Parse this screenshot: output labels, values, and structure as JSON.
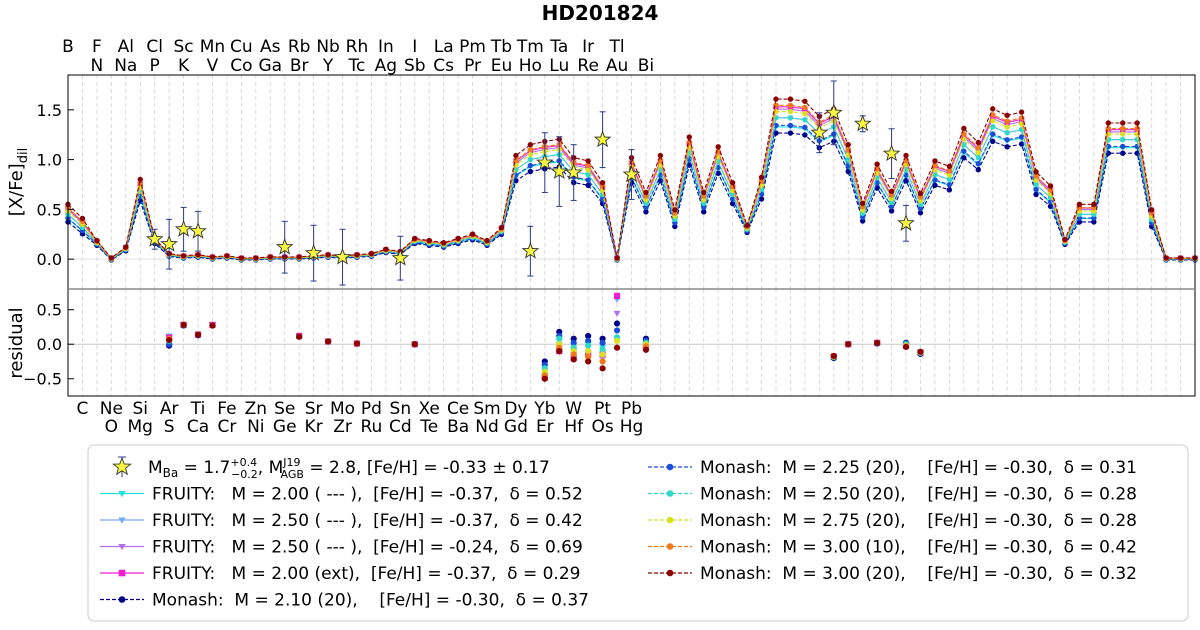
{
  "chart_data": {
    "type": "line",
    "title": "HD201824",
    "top_elements": [
      "B",
      "F",
      "Al",
      "Cl",
      "Sc",
      "Mn",
      "Cu",
      "As",
      "Rb",
      "Nb",
      "Rh",
      "In",
      "I",
      "La",
      "Pm",
      "Tb",
      "Tm",
      "Ta",
      "Ir",
      "Tl"
    ],
    "top_elements_2": [
      "N",
      "Na",
      "P",
      "K",
      "V",
      "Co",
      "Ga",
      "Br",
      "Y",
      "Tc",
      "Ag",
      "Sb",
      "Cs",
      "Pr",
      "Eu",
      "Ho",
      "Lu",
      "Re",
      "Au",
      "Bi"
    ],
    "bottom_elements": [
      "C",
      "Ne",
      "Si",
      "Ar",
      "Ti",
      "Fe",
      "Zn",
      "Se",
      "Sr",
      "Mo",
      "Pd",
      "Sn",
      "Xe",
      "Ce",
      "Sm",
      "Dy",
      "Yb",
      "W",
      "Pt",
      "Pb"
    ],
    "bottom_elements_2": [
      "O",
      "Mg",
      "S",
      "Ca",
      "Cr",
      "Ni",
      "Ge",
      "Kr",
      "Zr",
      "Ru",
      "Cd",
      "Te",
      "Ba",
      "Nd",
      "Gd",
      "Er",
      "Hf",
      "Os",
      "Hg"
    ],
    "x_range": [
      5,
      83
    ],
    "upper_panel": {
      "ylabel_main": "[X/Fe]",
      "ylabel_sub": "dil",
      "ylim": [
        -0.3,
        1.85
      ],
      "yticks": [
        "0.0",
        "0.5",
        "1.0",
        "1.5"
      ],
      "model_z": [
        5,
        6,
        7,
        8,
        9,
        10,
        11,
        12,
        13,
        14,
        15,
        16,
        17,
        18,
        19,
        20,
        21,
        22,
        23,
        24,
        25,
        26,
        27,
        28,
        29,
        30,
        31,
        32,
        33,
        34,
        35,
        36,
        37,
        38,
        39,
        40,
        41,
        42,
        43,
        44,
        45,
        46,
        47,
        48,
        49,
        50,
        51,
        52,
        53,
        54,
        55,
        56,
        57,
        58,
        59,
        60,
        61,
        62,
        63,
        64,
        65,
        66,
        67,
        68,
        69,
        70,
        71,
        72,
        73,
        74,
        75,
        76,
        77,
        78,
        79,
        80,
        81,
        82,
        83
      ],
      "observations": [
        {
          "z": 11,
          "y": 0.2,
          "err": 0.1
        },
        {
          "z": 12,
          "y": 0.15,
          "err": 0.25
        },
        {
          "z": 13,
          "y": 0.3,
          "err": 0.22
        },
        {
          "z": 14,
          "y": 0.28,
          "err": 0.2
        },
        {
          "z": 20,
          "y": 0.12,
          "err": 0.26
        },
        {
          "z": 22,
          "y": 0.06,
          "err": 0.28
        },
        {
          "z": 24,
          "y": 0.02,
          "err": 0.28
        },
        {
          "z": 28,
          "y": 0.01,
          "err": 0.22
        },
        {
          "z": 37,
          "y": 0.08,
          "err": 0.25
        },
        {
          "z": 38,
          "y": 0.97,
          "err": 0.3
        },
        {
          "z": 39,
          "y": 0.88,
          "err": 0.35
        },
        {
          "z": 40,
          "y": 0.87,
          "err": 0.28
        },
        {
          "z": 42,
          "y": 1.2,
          "err": 0.28
        },
        {
          "z": 44,
          "y": 0.85,
          "err": 0.25
        },
        {
          "z": 57,
          "y": 1.27,
          "err": 0.2
        },
        {
          "z": 58,
          "y": 1.47,
          "err": 0.32
        },
        {
          "z": 60,
          "y": 1.36,
          "err": 0.08
        },
        {
          "z": 62,
          "y": 1.06,
          "err": 0.25
        },
        {
          "z": 63,
          "y": 0.36,
          "err": 0.18
        }
      ],
      "base_profile": [
        0.45,
        0.32,
        0.16,
        0.0,
        0.1,
        0.68,
        0.18,
        0.04,
        0.02,
        0.03,
        0.01,
        0.02,
        0.0,
        0.0,
        0.01,
        0.01,
        0.01,
        0.02,
        0.03,
        0.02,
        0.03,
        0.04,
        0.08,
        0.06,
        0.18,
        0.16,
        0.14,
        0.18,
        0.22,
        0.16,
        0.28,
        0.9,
        1.0,
        1.03,
        1.05,
        0.88,
        0.85,
        0.65,
        0.0,
        0.88,
        0.56,
        0.9,
        0.4,
        1.07,
        0.56,
        0.98,
        0.65,
        0.3,
        0.7,
        1.42,
        1.42,
        1.4,
        1.26,
        1.33,
        1.0,
        0.46,
        0.82,
        0.57,
        0.9,
        0.55,
        0.85,
        0.8,
        1.15,
        1.02,
        1.33,
        1.27,
        1.3,
        0.75,
        0.62,
        0.17,
        0.45,
        0.45,
        1.2,
        1.2,
        1.2,
        0.4,
        0.0,
        0.0,
        0.0
      ],
      "series": [
        {
          "name": "FRUITY:   M = 2.00 ( --- ),  [Fe/H] = -0.37,  δ = 0.52",
          "color": "#22e0e0",
          "marker": "tri-down",
          "dash": "solid",
          "offset": -0.02,
          "scale": 0.95
        },
        {
          "name": "FRUITY:   M = 2.50 ( --- ),  [Fe/H] = -0.37,  δ = 0.42",
          "color": "#7aa8f0",
          "marker": "tri-down",
          "dash": "solid",
          "offset": 0.0,
          "scale": 1.0
        },
        {
          "name": "FRUITY:   M = 2.50 ( --- ),  [Fe/H] = -0.24,  δ = 0.69",
          "color": "#b070f0",
          "marker": "tri-down",
          "dash": "solid",
          "offset": 0.03,
          "scale": 1.04
        },
        {
          "name": "FRUITY:   M = 2.00 (ext),  [Fe/H] = -0.37,  δ = 0.29",
          "color": "#f020d0",
          "marker": "square",
          "dash": "solid",
          "offset": 0.04,
          "scale": 1.05
        },
        {
          "name": "Monash:  M = 2.10 (20),    [Fe/H] = -0.30,  δ = 0.37",
          "color": "#00008b",
          "marker": "circle",
          "dash": "dashed",
          "offset": -0.04,
          "scale": 0.92
        },
        {
          "name": "Monash:  M = 2.25 (20),    [Fe/H] = -0.30,  δ = 0.31",
          "color": "#1a4ed8",
          "marker": "circle",
          "dash": "dashed",
          "offset": -0.02,
          "scale": 0.96
        },
        {
          "name": "Monash:  M = 2.50 (20),    [Fe/H] = -0.30,  δ = 0.28",
          "color": "#30d8c8",
          "marker": "circle",
          "dash": "dashed",
          "offset": 0.0,
          "scale": 1.0
        },
        {
          "name": "Monash:  M = 2.75 (20),    [Fe/H] = -0.30,  δ = 0.28",
          "color": "#d8e020",
          "marker": "circle",
          "dash": "dashed",
          "offset": 0.02,
          "scale": 1.03
        },
        {
          "name": "Monash:  M = 3.00 (10),    [Fe/H] = -0.30,  δ = 0.42",
          "color": "#f07a1a",
          "marker": "circle",
          "dash": "dashed",
          "offset": 0.04,
          "scale": 1.06
        },
        {
          "name": "Monash:  M = 3.00 (20),    [Fe/H] = -0.30,  δ = 0.32",
          "color": "#8b0000",
          "marker": "circle",
          "dash": "dashed",
          "offset": 0.06,
          "scale": 1.09
        }
      ]
    },
    "lower_panel": {
      "ylabel": "residual",
      "ylim": [
        -0.75,
        0.8
      ],
      "yticks": [
        "0.5",
        "0.0",
        "−0.5"
      ],
      "points": [
        {
          "z": 12,
          "values": [
            0.12,
            0.1,
            0.1,
            0.1,
            -0.02,
            0.0,
            0.05,
            0.06,
            0.08,
            0.06
          ]
        },
        {
          "z": 13,
          "values": [
            0.28,
            0.28,
            0.28,
            0.28,
            0.27,
            0.27,
            0.28,
            0.28,
            0.28,
            0.28
          ]
        },
        {
          "z": 14,
          "values": [
            0.15,
            0.15,
            0.15,
            0.14,
            0.13,
            0.14,
            0.14,
            0.14,
            0.14,
            0.14
          ]
        },
        {
          "z": 15,
          "values": [
            0.28,
            0.28,
            0.28,
            0.28,
            0.27,
            0.27,
            0.27,
            0.27,
            0.27,
            0.27
          ]
        },
        {
          "z": 21,
          "values": [
            0.12,
            0.12,
            0.12,
            0.12,
            0.11,
            0.11,
            0.11,
            0.11,
            0.11,
            0.11
          ]
        },
        {
          "z": 23,
          "values": [
            0.04,
            0.04,
            0.04,
            0.04,
            0.04,
            0.04,
            0.04,
            0.04,
            0.04,
            0.04
          ]
        },
        {
          "z": 25,
          "values": [
            0.01,
            0.01,
            0.01,
            0.01,
            0.01,
            0.01,
            0.01,
            0.01,
            0.01,
            0.01
          ]
        },
        {
          "z": 29,
          "values": [
            0.0,
            0.0,
            0.0,
            0.0,
            0.0,
            0.0,
            0.0,
            0.0,
            0.0,
            0.0
          ]
        },
        {
          "z": 38,
          "values": [
            -0.45,
            -0.48,
            -0.5,
            -0.48,
            -0.25,
            -0.3,
            -0.35,
            -0.4,
            -0.45,
            -0.5
          ]
        },
        {
          "z": 39,
          "values": [
            0.05,
            0.0,
            -0.05,
            -0.1,
            0.18,
            0.12,
            0.08,
            0.0,
            -0.05,
            -0.1
          ]
        },
        {
          "z": 40,
          "values": [
            -0.05,
            -0.1,
            -0.15,
            -0.2,
            0.08,
            0.02,
            -0.05,
            -0.1,
            -0.15,
            -0.22
          ]
        },
        {
          "z": 41,
          "values": [
            0.0,
            -0.05,
            -0.12,
            -0.15,
            0.12,
            0.05,
            -0.02,
            -0.1,
            -0.18,
            -0.25
          ]
        },
        {
          "z": 42,
          "values": [
            -0.05,
            -0.1,
            -0.2,
            -0.15,
            0.08,
            0.02,
            -0.08,
            -0.15,
            -0.25,
            -0.35
          ]
        },
        {
          "z": 43,
          "values": [
            0.7,
            0.65,
            0.45,
            0.7,
            0.3,
            0.2,
            0.1,
            0.05,
            -0.05,
            -0.05
          ]
        },
        {
          "z": 45,
          "values": [
            0.0,
            -0.05,
            -0.08,
            -0.05,
            0.08,
            0.05,
            0.02,
            0.0,
            -0.03,
            -0.08
          ]
        },
        {
          "z": 58,
          "values": [
            -0.18,
            -0.18,
            -0.18,
            -0.18,
            -0.2,
            -0.19,
            -0.18,
            -0.18,
            -0.17,
            -0.17
          ]
        },
        {
          "z": 59,
          "values": [
            0.0,
            0.0,
            0.0,
            0.0,
            0.0,
            0.0,
            0.0,
            0.0,
            0.0,
            0.0
          ]
        },
        {
          "z": 61,
          "values": [
            0.02,
            0.02,
            0.02,
            0.02,
            0.01,
            0.01,
            0.02,
            0.02,
            0.02,
            0.02
          ]
        },
        {
          "z": 63,
          "values": [
            -0.02,
            -0.02,
            -0.02,
            -0.02,
            0.02,
            0.01,
            0.0,
            -0.02,
            -0.03,
            -0.04
          ]
        },
        {
          "z": 64,
          "values": [
            -0.12,
            -0.12,
            -0.12,
            -0.12,
            -0.14,
            -0.13,
            -0.12,
            -0.12,
            -0.11,
            -0.11
          ]
        }
      ]
    },
    "legend": {
      "placement": "bottom",
      "obs_label_parts": {
        "m_ba": "M",
        "m_ba_sub": "Ba",
        "eq1": " = 1.7",
        "sup1": "+0.4",
        "sub1": "−0.2",
        "sep": ", M",
        "agb_sup": "J19",
        "agb_sub": "AGB",
        "eq2": " = 2.8, [Fe/H] = -0.33 ± 0.17"
      }
    }
  }
}
